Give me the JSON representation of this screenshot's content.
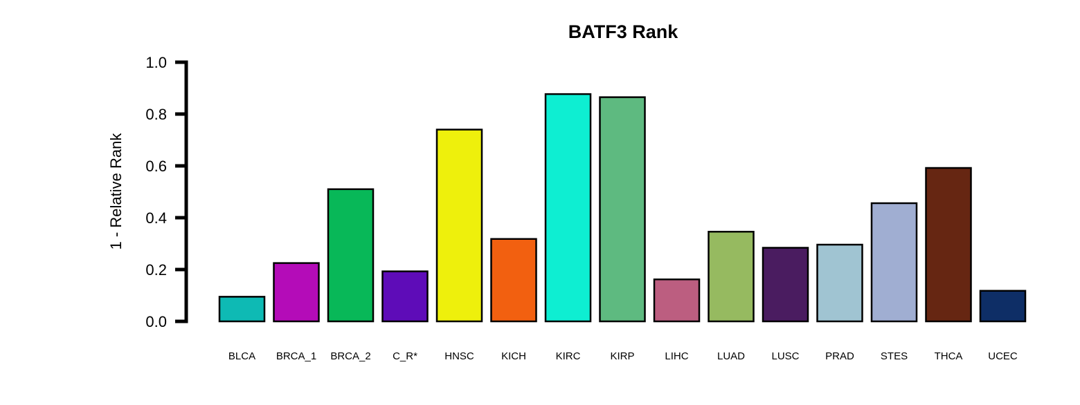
{
  "chart_data": {
    "type": "bar",
    "title": "BATF3 Rank",
    "xlabel": "",
    "ylabel": "1 - Relative Rank",
    "ylim": [
      0,
      1
    ],
    "yticks": [
      "0.0",
      "0.2",
      "0.4",
      "0.6",
      "0.8",
      "1.0"
    ],
    "grid": false,
    "categories": [
      "BLCA",
      "BRCA_1",
      "BRCA_2",
      "C_R*",
      "HNSC",
      "KICH",
      "KIRC",
      "KIRP",
      "LIHC",
      "LUAD",
      "LUSC",
      "PRAD",
      "STES",
      "THCA",
      "UCEC"
    ],
    "values": [
      0.095,
      0.225,
      0.51,
      0.193,
      0.74,
      0.318,
      0.877,
      0.865,
      0.162,
      0.346,
      0.284,
      0.296,
      0.456,
      0.592,
      0.118
    ],
    "colors": [
      "#0ebab4",
      "#b40cb8",
      "#08b858",
      "#5e0cb8",
      "#eef00c",
      "#f26010",
      "#0eeed2",
      "#5eba80",
      "#bc5e80",
      "#96ba60",
      "#4a1c60",
      "#a0c4d2",
      "#a0aed2",
      "#662612",
      "#0e2e66"
    ]
  }
}
